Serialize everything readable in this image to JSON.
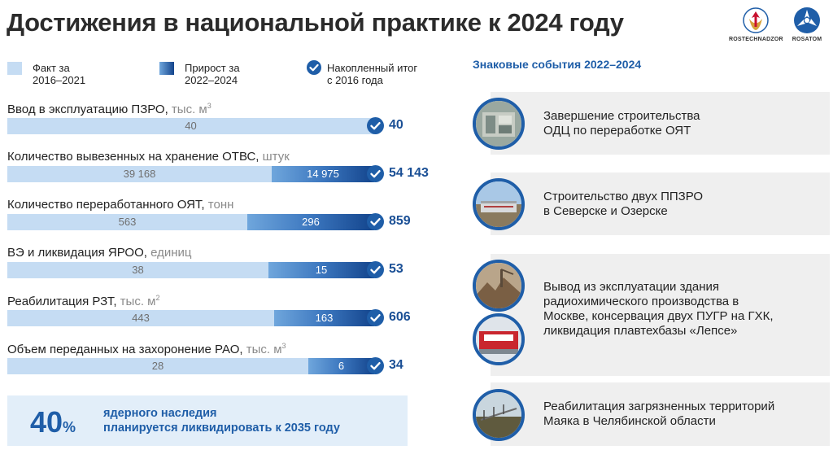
{
  "header": {
    "title": "Достижения в национальной практике к 2024 году",
    "logos": [
      {
        "label": "ROSTECHNADZOR",
        "icon": "rostechnadzor-emblem-icon"
      },
      {
        "label": "ROSATOM",
        "icon": "rosatom-logo-icon"
      }
    ]
  },
  "legend": {
    "fact": {
      "line1": "Факт за",
      "line2": "2016–2021",
      "color": "#c5dcf3"
    },
    "growth": {
      "line1": "Прирост за",
      "line2": "2022–2024",
      "color": "#1f5ea8"
    },
    "total": {
      "line1": "Накопленный итог",
      "line2": "с 2016 года",
      "icon": "check-circle-icon"
    }
  },
  "rows": [
    {
      "label": "Ввод в эксплуатацию ПЗРО,",
      "unit": " тыс. м",
      "sup": "3",
      "fact": "40",
      "growth": "",
      "total": "40",
      "fact_value": 40,
      "growth_value": 0
    },
    {
      "label": "Количество вывезенных на хранение ОТВС,",
      "unit": " штук",
      "sup": "",
      "fact": "39 168",
      "growth": "14 975",
      "total": "54 143",
      "fact_value": 39168,
      "growth_value": 14975
    },
    {
      "label": "Количество переработанного ОЯТ,",
      "unit": " тонн",
      "sup": "",
      "fact": "563",
      "growth": "296",
      "total": "859",
      "fact_value": 563,
      "growth_value": 296
    },
    {
      "label": "ВЭ и ликвидация ЯРОО,",
      "unit": " единиц",
      "sup": "",
      "fact": "38",
      "growth": "15",
      "total": "53",
      "fact_value": 38,
      "growth_value": 15
    },
    {
      "label": "Реабилитация РЗТ,",
      "unit": " тыс. м",
      "sup": "2",
      "fact": "443",
      "growth": "163",
      "total": "606",
      "fact_value": 443,
      "growth_value": 163
    },
    {
      "label": "Объем переданных на захоронение РАО,",
      "unit": " тыс. м",
      "sup": "3",
      "fact": "28",
      "growth": "6",
      "total": "34",
      "fact_value": 28,
      "growth_value": 6
    }
  ],
  "goal": {
    "percent": "40",
    "percent_sign": "%",
    "line1": "ядерного наследия",
    "line2": "планируется ликвидировать к 2035 году"
  },
  "events": {
    "title": "Знаковые события 2022–2024",
    "items": [
      {
        "lines": [
          "Завершение строительства",
          "ОДЦ по переработке ОЯТ"
        ]
      },
      {
        "lines": [
          "Строительство двух ППЗРО",
          "в Северске и Озерске"
        ]
      },
      {
        "lines": [
          "Вывод из эксплуатации здания",
          "радиохимического производства в",
          "Москве, консервация двух ПУГР на ГХК,",
          "ликвидация плавтехбазы «Лепсе»"
        ]
      },
      {
        "lines": [
          "Реабилитация загрязненных территорий",
          "Маяка в Челябинской области"
        ]
      }
    ]
  },
  "colors": {
    "accent": "#1f5ea8",
    "fact_bar": "#c5dcf3",
    "growth_bar_dark": "#13448c",
    "total_text": "#1a4f95",
    "card_bg": "#efefef"
  }
}
